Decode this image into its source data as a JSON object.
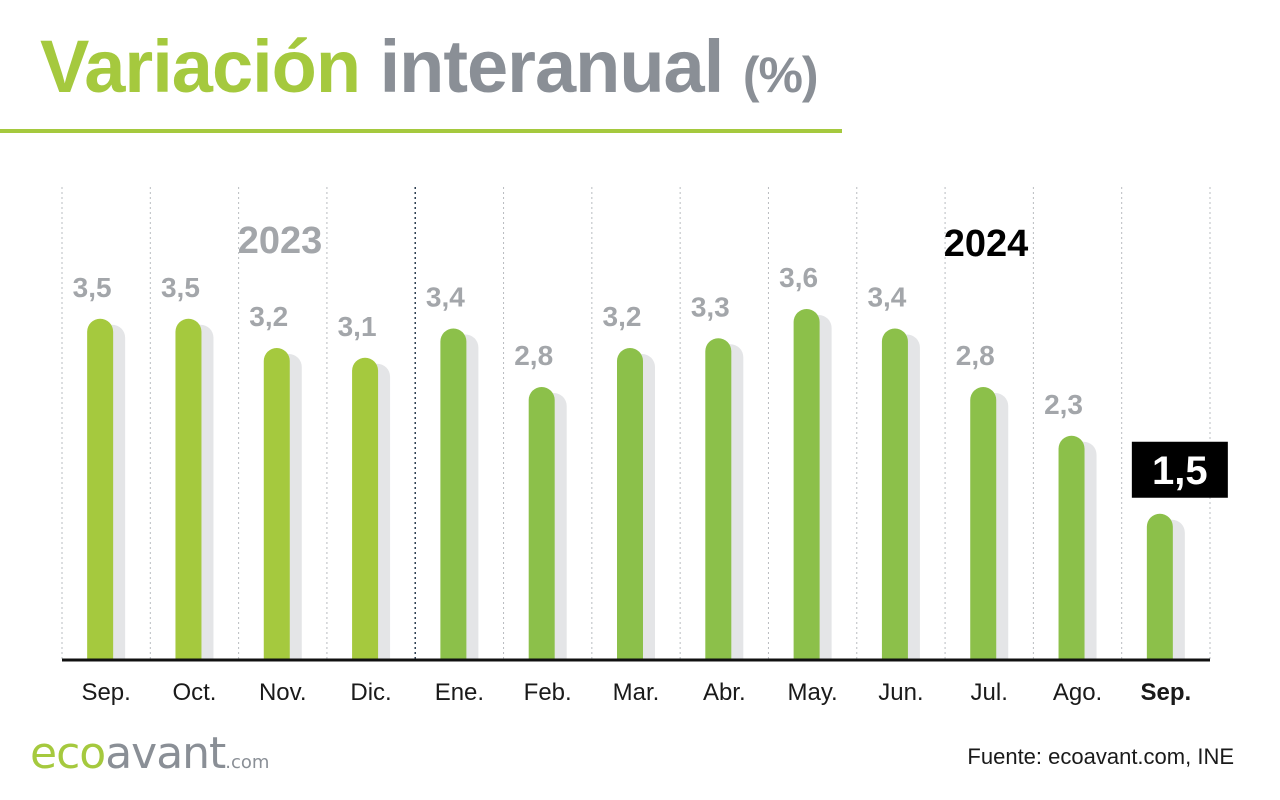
{
  "title": {
    "part1": "Variación",
    "part2": "interanual",
    "part3": "(%)"
  },
  "source": "Fuente: ecoavant.com, INE",
  "logo": {
    "eco": "eco",
    "avant": "avant",
    "com": ".com"
  },
  "colors": {
    "bar_2023": "#a5c93e",
    "bar_2024": "#8cc04a",
    "label_gray": "#a3a6aa",
    "accent_title": "#a5c93e",
    "gray_title": "#8a8f96",
    "highlight_box": "#000000"
  },
  "chart_data": {
    "type": "bar",
    "title": "Variación interanual (%)",
    "categories": [
      "Sep.",
      "Oct.",
      "Nov.",
      "Dic.",
      "Ene.",
      "Feb.",
      "Mar.",
      "Abr.",
      "May.",
      "Jun.",
      "Jul.",
      "Ago.",
      "Sep."
    ],
    "values": [
      3.5,
      3.5,
      3.2,
      3.1,
      3.4,
      2.8,
      3.2,
      3.3,
      3.6,
      3.4,
      2.8,
      2.3,
      1.5
    ],
    "value_labels": [
      "3,5",
      "3,5",
      "3,2",
      "3,1",
      "3,4",
      "2,8",
      "3,2",
      "3,3",
      "3,6",
      "3,4",
      "2,8",
      "2,3",
      "1,5"
    ],
    "years": [
      "2023",
      "2023",
      "2023",
      "2023",
      "2024",
      "2024",
      "2024",
      "2024",
      "2024",
      "2024",
      "2024",
      "2024",
      "2024"
    ],
    "year_labels": [
      {
        "text": "2023",
        "style": "gray"
      },
      {
        "text": "2024",
        "style": "black"
      }
    ],
    "highlighted_index": 12,
    "ylim": [
      0,
      3.6
    ],
    "grid": "vertical dotted separators",
    "legend": "none"
  }
}
